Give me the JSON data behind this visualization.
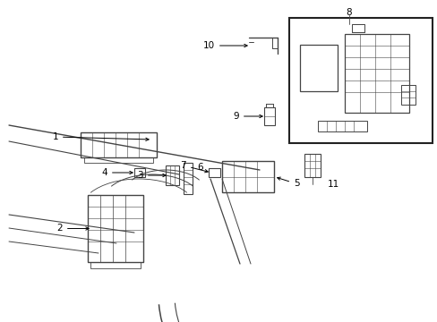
{
  "background_color": "#ffffff",
  "line_color": "#444444",
  "text_color": "#000000",
  "fig_width": 4.89,
  "fig_height": 3.6,
  "dpi": 100,
  "xlim": [
    0,
    489
  ],
  "ylim": [
    0,
    360
  ]
}
